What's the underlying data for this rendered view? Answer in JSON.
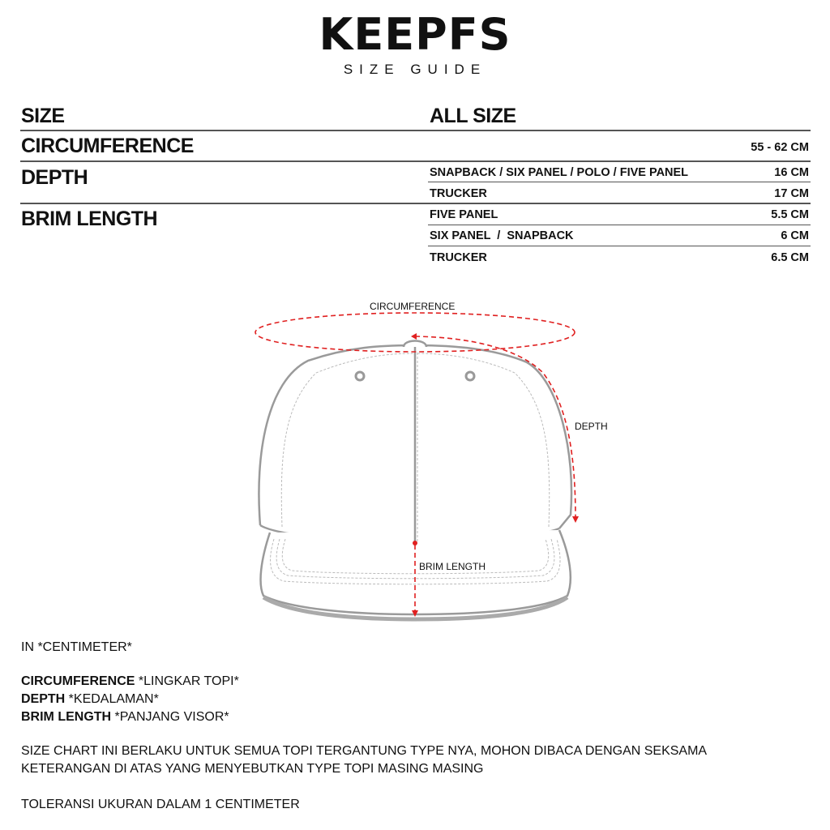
{
  "header": {
    "brand": "KEEPFS",
    "subtitle": "SIZE GUIDE"
  },
  "table": {
    "size_label": "SIZE",
    "size_value": "ALL SIZE",
    "circumference": {
      "label": "CIRCUMFERENCE",
      "value": "55 - 62 CM"
    },
    "depth": {
      "label": "DEPTH",
      "rows": [
        {
          "type": "SNAPBACK / SIX PANEL / POLO / FIVE PANEL",
          "value": "16 CM"
        },
        {
          "type": "TRUCKER",
          "value": "17 CM"
        }
      ]
    },
    "brim": {
      "label": "BRIM LENGTH",
      "rows": [
        {
          "type": "FIVE PANEL",
          "value": "5.5 CM"
        },
        {
          "type": "SIX PANEL  /  SNAPBACK",
          "value": "6 CM"
        },
        {
          "type": "TRUCKER",
          "value": "6.5 CM"
        }
      ]
    }
  },
  "diagram": {
    "circumference_label": "CIRCUMFERENCE",
    "depth_label": "DEPTH",
    "brim_label": "BRIM LENGTH",
    "measure_color": "#e02020",
    "outline_color": "#9a9a9a"
  },
  "notes": {
    "unit": "IN *CENTIMETER*",
    "legend": [
      {
        "term": "CIRCUMFERENCE",
        "meaning": " *LINGKAR TOPI*"
      },
      {
        "term": "DEPTH",
        "meaning": " *KEDALAMAN*"
      },
      {
        "term": "BRIM LENGTH",
        "meaning": " *PANJANG VISOR*"
      }
    ],
    "para1_line1": "SIZE CHART INI BERLAKU UNTUK SEMUA TOPI TERGANTUNG TYPE NYA, MOHON DIBACA DENGAN SEKSAMA",
    "para1_line2": "KETERANGAN DI ATAS YANG MENYEBUTKAN TYPE TOPI MASING MASING",
    "tolerance": "TOLERANSI UKURAN DALAM 1 CENTIMETER"
  }
}
